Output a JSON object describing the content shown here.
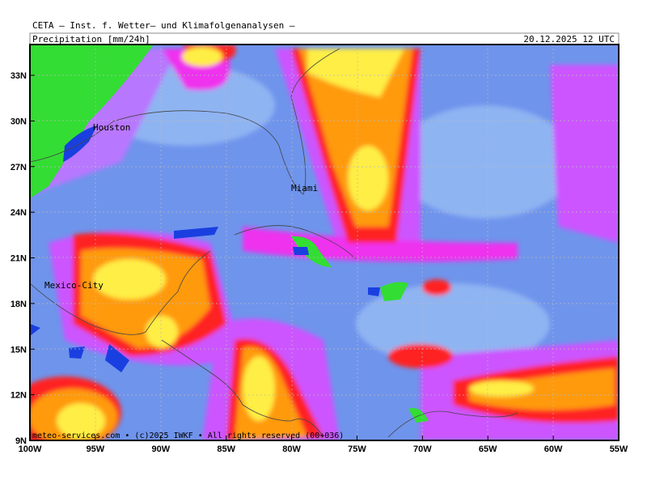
{
  "header": {
    "title": "CETA – Inst. f. Wetter– und Klimafolgenanalysen –",
    "parameter": "Precipitation [mm/24h]",
    "valid_time": "20.12.2025 12 UTC"
  },
  "map": {
    "lat_labels": [
      "33N",
      "30N",
      "27N",
      "24N",
      "21N",
      "18N",
      "15N",
      "12N",
      "9N"
    ],
    "lon_labels": [
      "100W",
      "95W",
      "90W",
      "85W",
      "80W",
      "75W",
      "70W",
      "65W",
      "60W",
      "55W"
    ],
    "cities": [
      "Houston",
      "Miami",
      "Mexico-City"
    ]
  },
  "footer": "meteo-services.com • (c)2025 IWKF • All rights reserved (00+036)"
}
